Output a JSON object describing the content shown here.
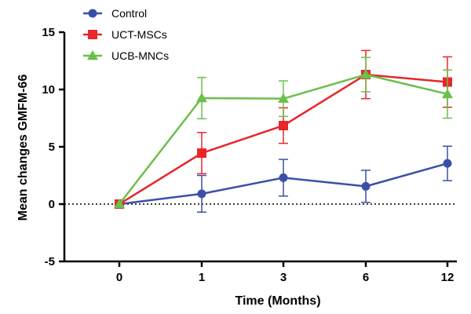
{
  "chart_data": {
    "type": "line",
    "title": "",
    "xlabel": "Time (Months)",
    "ylabel": "Mean changes GMFM-66",
    "categories": [
      "0",
      "1",
      "3",
      "6",
      "12"
    ],
    "ylim": [
      -5,
      15
    ],
    "yticks": [
      -5,
      0,
      5,
      10,
      15
    ],
    "ytick_labels": [
      "-5",
      "0",
      "5",
      "10",
      "15"
    ],
    "zero_reference_line": "dotted",
    "legend_position": "top-left",
    "series": [
      {
        "name": "Control",
        "marker": "circle",
        "color": "#3b4fa8",
        "values": [
          0,
          0.9,
          2.3,
          1.55,
          3.55
        ],
        "errors": [
          0,
          1.6,
          1.6,
          1.4,
          1.5
        ]
      },
      {
        "name": "UCT-MSCs",
        "marker": "square",
        "color": "#e8262b",
        "values": [
          0,
          4.45,
          6.85,
          11.3,
          10.65
        ],
        "errors": [
          0,
          1.8,
          1.55,
          2.1,
          2.2
        ]
      },
      {
        "name": "UCB-MNCs",
        "marker": "triangle",
        "color": "#6cbf4a",
        "values": [
          0,
          9.25,
          9.2,
          11.3,
          9.6
        ],
        "errors": [
          0,
          1.8,
          1.55,
          1.5,
          2.1
        ]
      }
    ]
  }
}
